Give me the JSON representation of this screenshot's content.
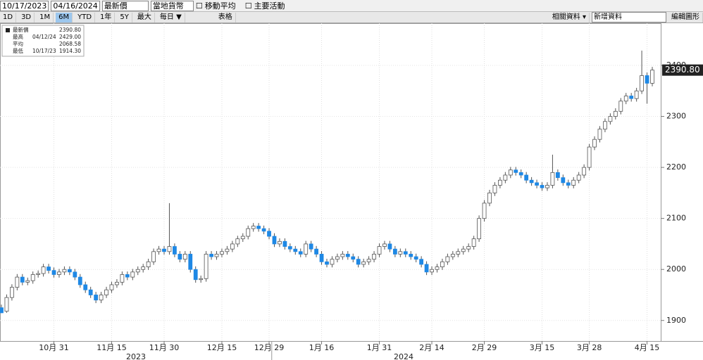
{
  "toolbar": {
    "start_date": "10/17/2023",
    "end_date": "04/16/2024",
    "price_field": "最新價",
    "currency": "當地貨幣",
    "moving_avg": "移動平均",
    "key_events": "主要活動",
    "periods": [
      "1D",
      "3D",
      "1M",
      "6M",
      "YTD",
      "1年",
      "5Y",
      "最大"
    ],
    "active_period": "6M",
    "frequency": "每日 ▼",
    "table": "表格",
    "related": "相關資料 ▾",
    "add_data": "新增資料",
    "edit_chart": "編輯圖形"
  },
  "chart_data": {
    "type": "candlestick",
    "legend": {
      "rows": [
        [
          "最新價",
          "",
          "2390.80"
        ],
        [
          "最高",
          "04/12/24",
          "2429.00"
        ],
        [
          "平均",
          "",
          "2068.58"
        ],
        [
          "最低",
          "10/17/23",
          "1914.30"
        ]
      ]
    },
    "last_price_label": "2390.80",
    "up_color": "#ffffff",
    "down_color": "#1e88e5",
    "edge_color": "#555555",
    "year_labels": [
      {
        "label": "2023",
        "at": "chart_data.categories.31"
      },
      {
        "label": "2024",
        "at": "chart_data.categories.82"
      }
    ],
    "categories": [
      null,
      null,
      null,
      null,
      null,
      null,
      null,
      null,
      null,
      null,
      "10月 31",
      null,
      null,
      null,
      null,
      null,
      null,
      null,
      null,
      null,
      null,
      "11月 15",
      null,
      null,
      null,
      null,
      null,
      null,
      null,
      null,
      null,
      "11月 30",
      null,
      null,
      null,
      null,
      null,
      null,
      null,
      null,
      null,
      null,
      "12月 15",
      null,
      null,
      null,
      null,
      null,
      null,
      null,
      null,
      "12月 29",
      null,
      null,
      null,
      null,
      null,
      null,
      null,
      null,
      null,
      "1月 16",
      null,
      null,
      null,
      null,
      null,
      null,
      null,
      null,
      null,
      null,
      "1月 31",
      null,
      null,
      null,
      null,
      null,
      null,
      null,
      null,
      null,
      "2月 14",
      null,
      null,
      null,
      null,
      null,
      null,
      null,
      null,
      null,
      "2月 29",
      null,
      null,
      null,
      null,
      null,
      null,
      null,
      null,
      null,
      null,
      "3月 15",
      null,
      null,
      null,
      null,
      null,
      null,
      null,
      null,
      "3月 28",
      null,
      null,
      null,
      null,
      null,
      null,
      null,
      null,
      null,
      null,
      "4月 15",
      null
    ],
    "open": [
      1925,
      1918,
      1945,
      1965,
      1985,
      1975,
      1978,
      1990,
      1992,
      2005,
      1998,
      1990,
      1995,
      2000,
      1995,
      1985,
      1970,
      1960,
      1950,
      1940,
      1950,
      1960,
      1970,
      1975,
      1990,
      1985,
      1995,
      2000,
      2005,
      2015,
      2035,
      2040,
      2035,
      2045,
      2030,
      2020,
      2030,
      2000,
      1980,
      1982,
      2030,
      2025,
      2030,
      2035,
      2040,
      2050,
      2060,
      2065,
      2080,
      2085,
      2080,
      2075,
      2065,
      2050,
      2055,
      2045,
      2040,
      2035,
      2030,
      2050,
      2040,
      2030,
      2015,
      2010,
      2020,
      2025,
      2030,
      2025,
      2020,
      2010,
      2015,
      2020,
      2030,
      2045,
      2050,
      2040,
      2030,
      2035,
      2030,
      2025,
      2020,
      2010,
      1995,
      2000,
      2005,
      2015,
      2025,
      2030,
      2035,
      2040,
      2045,
      2060,
      2100,
      2130,
      2150,
      2165,
      2175,
      2185,
      2195,
      2190,
      2185,
      2175,
      2170,
      2165,
      2160,
      2165,
      2190,
      2180,
      2170,
      2165,
      2175,
      2185,
      2200,
      2240,
      2255,
      2275,
      2290,
      2300,
      2310,
      2330,
      2340,
      2335,
      2350,
      2380,
      2365
    ],
    "high": [
      1931,
      1951,
      1971,
      1991,
      1991,
      1984,
      1996,
      1998,
      2011,
      2011,
      2004,
      2001,
      2006,
      2006,
      2001,
      1991,
      1976,
      1966,
      1956,
      1956,
      1966,
      1976,
      1981,
      1996,
      1996,
      2001,
      2006,
      2011,
      2021,
      2041,
      2046,
      2046,
      2130,
      2051,
      2036,
      2036,
      2036,
      2006,
      1988,
      2036,
      2036,
      2036,
      2041,
      2046,
      2056,
      2066,
      2071,
      2086,
      2091,
      2091,
      2086,
      2081,
      2071,
      2061,
      2061,
      2051,
      2046,
      2041,
      2056,
      2056,
      2046,
      2036,
      2021,
      2026,
      2031,
      2036,
      2036,
      2031,
      2026,
      2021,
      2026,
      2036,
      2051,
      2056,
      2056,
      2046,
      2041,
      2041,
      2036,
      2031,
      2026,
      2016,
      2006,
      2011,
      2021,
      2031,
      2036,
      2041,
      2046,
      2051,
      2066,
      2106,
      2136,
      2156,
      2171,
      2181,
      2191,
      2201,
      2201,
      2196,
      2191,
      2181,
      2176,
      2171,
      2171,
      2225,
      2196,
      2186,
      2176,
      2181,
      2191,
      2206,
      2246,
      2261,
      2281,
      2296,
      2306,
      2316,
      2336,
      2346,
      2346,
      2356,
      2429,
      2386,
      2397
    ],
    "low": [
      1914.3,
      1915,
      1939,
      1959,
      1969,
      1969,
      1972,
      1984,
      1986,
      1992,
      1984,
      1984,
      1989,
      1989,
      1979,
      1964,
      1954,
      1944,
      1934,
      1934,
      1944,
      1954,
      1964,
      1969,
      1979,
      1979,
      1989,
      1994,
      1999,
      2009,
      2029,
      2029,
      2029,
      2024,
      2014,
      2014,
      1994,
      1974,
      1974,
      1976,
      2019,
      2019,
      2024,
      2029,
      2034,
      2044,
      2054,
      2059,
      2074,
      2074,
      2069,
      2059,
      2044,
      2044,
      2039,
      2034,
      2029,
      2024,
      2024,
      2034,
      2024,
      2009,
      2004,
      2004,
      2014,
      2019,
      2019,
      2014,
      2004,
      2004,
      2009,
      2014,
      2024,
      2039,
      2034,
      2024,
      2024,
      2024,
      2019,
      2014,
      2004,
      1989,
      1989,
      1994,
      1999,
      2009,
      2019,
      2024,
      2029,
      2034,
      2039,
      2054,
      2094,
      2124,
      2144,
      2159,
      2169,
      2179,
      2184,
      2179,
      2169,
      2164,
      2159,
      2154,
      2154,
      2159,
      2174,
      2164,
      2159,
      2159,
      2169,
      2179,
      2194,
      2234,
      2249,
      2269,
      2284,
      2294,
      2304,
      2324,
      2329,
      2329,
      2344,
      2325,
      2359
    ],
    "close": [
      1915,
      1945,
      1965,
      1985,
      1975,
      1978,
      1990,
      1992,
      2005,
      1998,
      1990,
      1995,
      2000,
      1995,
      1985,
      1970,
      1960,
      1950,
      1940,
      1950,
      1960,
      1970,
      1975,
      1990,
      1985,
      1995,
      2000,
      2005,
      2015,
      2035,
      2040,
      2035,
      2045,
      2030,
      2020,
      2030,
      2000,
      1980,
      1982,
      2030,
      2025,
      2030,
      2035,
      2040,
      2050,
      2060,
      2065,
      2080,
      2085,
      2080,
      2075,
      2065,
      2050,
      2055,
      2045,
      2040,
      2035,
      2030,
      2050,
      2040,
      2030,
      2015,
      2010,
      2020,
      2025,
      2030,
      2025,
      2020,
      2010,
      2015,
      2020,
      2030,
      2045,
      2050,
      2040,
      2030,
      2035,
      2030,
      2025,
      2020,
      2010,
      1995,
      2000,
      2005,
      2015,
      2025,
      2030,
      2035,
      2040,
      2045,
      2060,
      2100,
      2130,
      2150,
      2165,
      2175,
      2185,
      2195,
      2190,
      2185,
      2175,
      2170,
      2165,
      2160,
      2165,
      2190,
      2180,
      2170,
      2165,
      2175,
      2185,
      2200,
      2240,
      2255,
      2275,
      2290,
      2300,
      2310,
      2330,
      2340,
      2335,
      2350,
      2380,
      2365,
      2390.8
    ],
    "ylim": [
      1861,
      2484
    ],
    "yticks": [
      1900,
      2000,
      2100,
      2200,
      2300,
      2400
    ],
    "grid": true
  }
}
